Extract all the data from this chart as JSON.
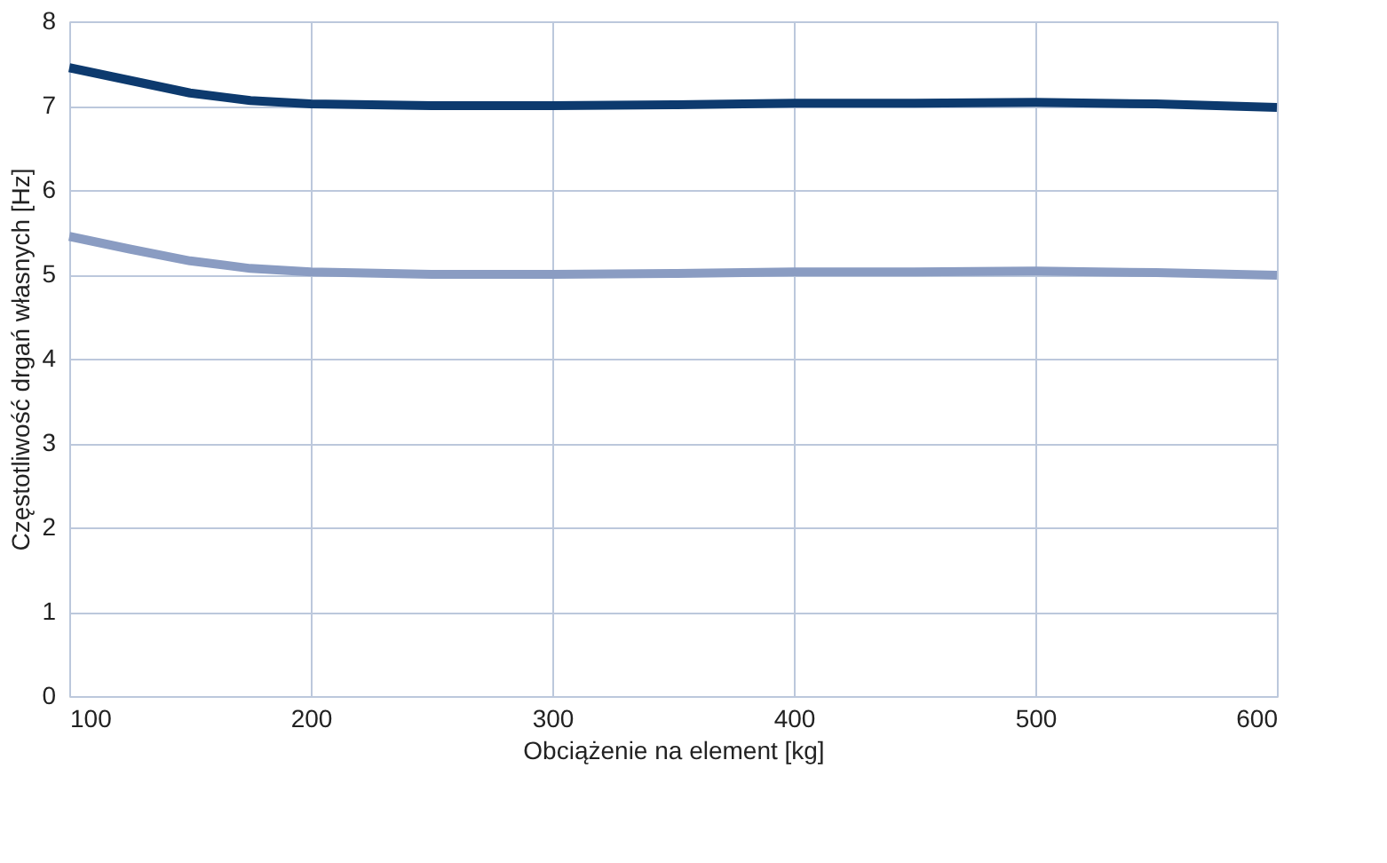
{
  "chart_data": {
    "type": "line",
    "xlabel": "Obciążenie na element [kg]",
    "ylabel": "Częstotliwość drgań własnych [Hz]",
    "x": [
      100,
      125,
      150,
      175,
      200,
      250,
      300,
      350,
      400,
      450,
      500,
      550,
      600
    ],
    "series": [
      {
        "color": "#0d3a6e",
        "values": [
          7.45,
          7.3,
          7.15,
          7.06,
          7.02,
          7.0,
          7.0,
          7.01,
          7.03,
          7.03,
          7.04,
          7.02,
          6.98
        ]
      },
      {
        "color": "#8a9cc2",
        "values": [
          5.45,
          5.3,
          5.16,
          5.07,
          5.03,
          5.0,
          5.0,
          5.01,
          5.03,
          5.03,
          5.04,
          5.02,
          4.99
        ]
      }
    ],
    "xlim": [
      100,
      600
    ],
    "xticks": [
      100,
      200,
      300,
      400,
      500,
      600
    ],
    "ylim": [
      0,
      8
    ],
    "yticks": [
      0,
      1,
      2,
      3,
      4,
      5,
      6,
      7,
      8
    ],
    "grid": true,
    "marker": "none",
    "line_style": "solid"
  }
}
